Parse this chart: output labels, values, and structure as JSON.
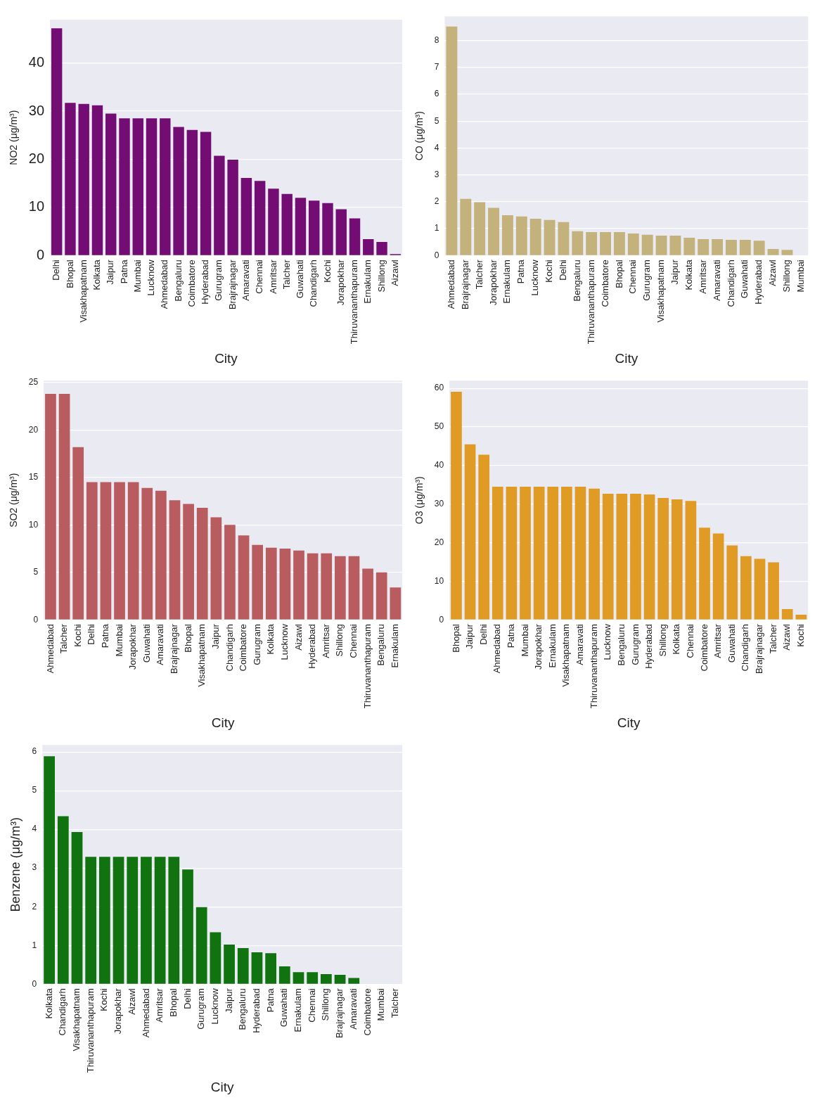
{
  "chart_data": [
    {
      "type": "bar",
      "xlabel": "City",
      "ylabel": "NO2 (μg/m³)",
      "categories": [
        "Delhi",
        "Bhopal",
        "Visakhapatnam",
        "Kolkata",
        "Jaipur",
        "Patna",
        "Mumbai",
        "Lucknow",
        "Ahmedabad",
        "Bengaluru",
        "Coimbatore",
        "Hyderabad",
        "Gurugram",
        "Brajrajnagar",
        "Amaravati",
        "Chennai",
        "Amritsar",
        "Talcher",
        "Guwahati",
        "Chandigarh",
        "Kochi",
        "Jorapokhar",
        "Thiruvananthapuram",
        "Ernakulam",
        "Shillong",
        "Aizawl"
      ],
      "values": [
        47.2,
        31.7,
        31.5,
        31.2,
        29.5,
        28.5,
        28.5,
        28.5,
        28.5,
        26.7,
        26.1,
        25.7,
        20.7,
        19.9,
        16.1,
        15.5,
        13.9,
        12.8,
        12.0,
        11.4,
        10.9,
        9.6,
        7.7,
        3.4,
        2.8,
        0.3
      ],
      "color": "#730c73",
      "ylim": [
        0,
        49
      ],
      "yticks": [
        0,
        10,
        20,
        30,
        40
      ],
      "grid": "y"
    },
    {
      "type": "bar",
      "xlabel": "City",
      "ylabel": "CO (μg/m³)",
      "categories": [
        "Ahmedabad",
        "Brajrajnagar",
        "Talcher",
        "Jorapokhar",
        "Ernakulam",
        "Patna",
        "Lucknow",
        "Kochi",
        "Delhi",
        "Bengaluru",
        "Thiruvananthapuram",
        "Coimbatore",
        "Bhopal",
        "Chennai",
        "Gurugram",
        "Visakhapatnam",
        "Jaipur",
        "Kolkata",
        "Amritsar",
        "Amaravati",
        "Chandigarh",
        "Guwahati",
        "Hyderabad",
        "Aizawl",
        "Shillong",
        "Mumbai"
      ],
      "values": [
        8.52,
        2.11,
        1.98,
        1.77,
        1.5,
        1.45,
        1.37,
        1.32,
        1.24,
        0.9,
        0.87,
        0.87,
        0.87,
        0.82,
        0.77,
        0.74,
        0.74,
        0.66,
        0.61,
        0.61,
        0.58,
        0.58,
        0.55,
        0.24,
        0.21,
        0
      ],
      "color": "#c4b27c",
      "ylim": [
        0,
        8.9
      ],
      "yticks": [
        0,
        1,
        2,
        3,
        4,
        5,
        6,
        7,
        8
      ],
      "grid": "y"
    },
    {
      "type": "bar",
      "xlabel": "City",
      "ylabel": "SO2 (μg/m³)",
      "categories": [
        "Ahmedabad",
        "Talcher",
        "Kochi",
        "Delhi",
        "Patna",
        "Mumbai",
        "Jorapokhar",
        "Guwahati",
        "Amaravati",
        "Brajrajnagar",
        "Bhopal",
        "Visakhapatnam",
        "Jaipur",
        "Chandigarh",
        "Coimbatore",
        "Gurugram",
        "Kolkata",
        "Lucknow",
        "Aizawl",
        "Hyderabad",
        "Amritsar",
        "Shillong",
        "Chennai",
        "Thiruvananthapuram",
        "Bengaluru",
        "Ernakulam"
      ],
      "values": [
        23.8,
        23.8,
        18.2,
        14.5,
        14.5,
        14.5,
        14.5,
        13.9,
        13.6,
        12.6,
        12.2,
        11.8,
        10.8,
        10.0,
        8.9,
        7.9,
        7.6,
        7.5,
        7.3,
        7.0,
        7.0,
        6.7,
        6.7,
        5.4,
        5.0,
        3.4
      ],
      "color": "#b85c5f",
      "ylim": [
        0,
        25.2
      ],
      "yticks": [
        0,
        5,
        10,
        15,
        20,
        25
      ],
      "grid": "y"
    },
    {
      "type": "bar",
      "xlabel": "City",
      "ylabel": "O3 (μg/m³)",
      "categories": [
        "Bhopal",
        "Jaipur",
        "Delhi",
        "Ahmedabad",
        "Patna",
        "Mumbai",
        "Jorapokhar",
        "Ernakulam",
        "Visakhapatnam",
        "Amaravati",
        "Thiruvananthapuram",
        "Lucknow",
        "Bengaluru",
        "Gurugram",
        "Hyderabad",
        "Shillong",
        "Kolkata",
        "Chennai",
        "Coimbatore",
        "Amritsar",
        "Guwahati",
        "Chandigarh",
        "Brajrajnagar",
        "Talcher",
        "Aizawl",
        "Kochi"
      ],
      "values": [
        59.1,
        45.5,
        42.8,
        34.5,
        34.5,
        34.5,
        34.5,
        34.5,
        34.5,
        34.5,
        34.0,
        32.7,
        32.7,
        32.7,
        32.5,
        31.6,
        31.2,
        30.8,
        23.9,
        22.4,
        19.3,
        16.5,
        15.8,
        14.9,
        2.8,
        1.3
      ],
      "color": "#e09b25",
      "ylim": [
        0,
        62
      ],
      "yticks": [
        0,
        10,
        20,
        30,
        40,
        50,
        60
      ],
      "grid": "y"
    },
    {
      "type": "bar",
      "xlabel": "City",
      "ylabel": "Benzene (μg/m³)",
      "categories": [
        "Kolkata",
        "Chandigarh",
        "Visakhapatnam",
        "Thiruvananthapuram",
        "Kochi",
        "Jorapokhar",
        "Aizawl",
        "Ahmedabad",
        "Amritsar",
        "Bhopal",
        "Delhi",
        "Gurugram",
        "Lucknow",
        "Jaipur",
        "Bengaluru",
        "Hyderabad",
        "Patna",
        "Guwahati",
        "Ernakulam",
        "Chennai",
        "Shillong",
        "Brajrajnagar",
        "Amaravati",
        "Coimbatore",
        "Mumbai",
        "Talcher"
      ],
      "values": [
        5.89,
        4.34,
        3.93,
        3.29,
        3.29,
        3.29,
        3.29,
        3.29,
        3.29,
        3.29,
        2.96,
        1.99,
        1.34,
        1.02,
        0.93,
        0.82,
        0.8,
        0.46,
        0.31,
        0.31,
        0.26,
        0.24,
        0.16,
        0,
        0,
        0
      ],
      "color": "#10730f",
      "ylim": [
        0,
        6.18
      ],
      "yticks": [
        0,
        1,
        2,
        3,
        4,
        5,
        6
      ],
      "grid": "y"
    }
  ]
}
